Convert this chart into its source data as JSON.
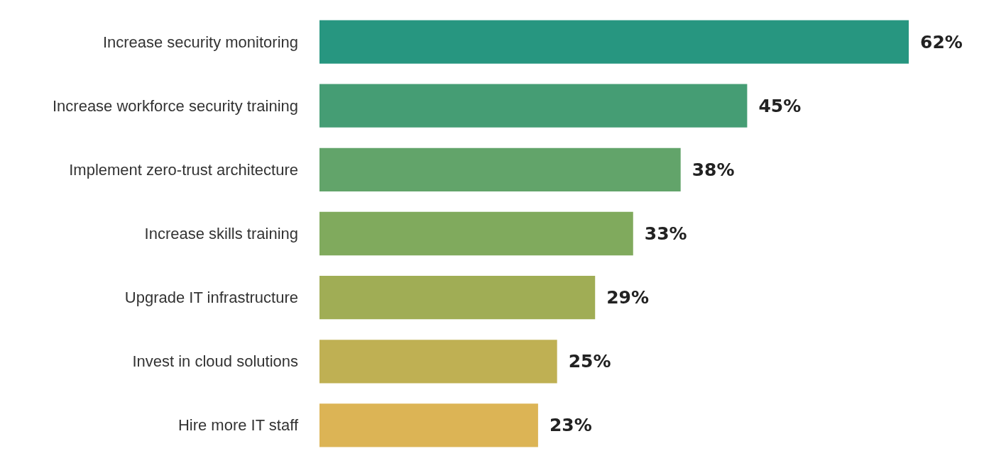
{
  "chart_data": {
    "type": "bar",
    "orientation": "horizontal",
    "categories": [
      "Increase security monitoring",
      "Increase workforce security training",
      "Implement zero-trust architecture",
      "Increase skills training",
      "Upgrade IT infrastructure",
      "Invest in cloud solutions",
      "Hire more IT staff"
    ],
    "values": [
      62,
      45,
      38,
      33,
      29,
      25,
      23
    ],
    "colors": [
      "#279680",
      "#459d74",
      "#62a46a",
      "#80aa5d",
      "#a0ad55",
      "#bfb053",
      "#dcb455"
    ],
    "value_labels": [
      "62%",
      "45%",
      "38%",
      "33%",
      "29%",
      "25%",
      "23%"
    ]
  }
}
